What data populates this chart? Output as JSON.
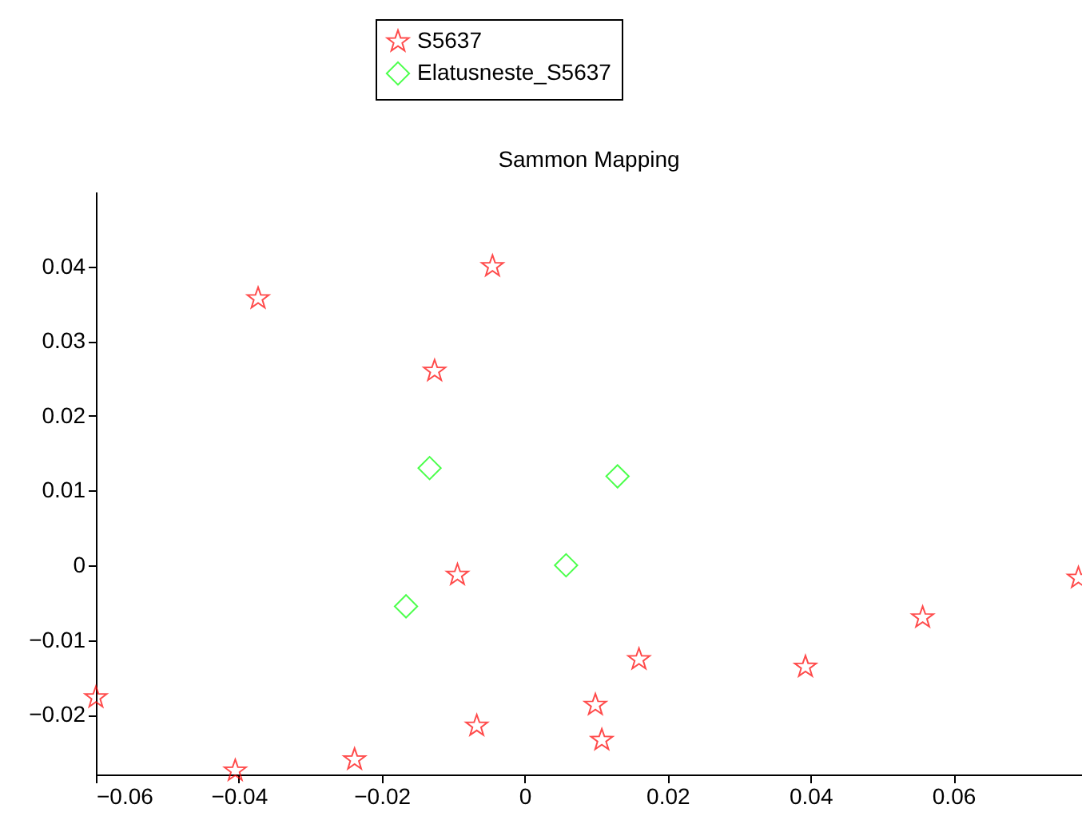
{
  "chart_data": {
    "type": "scatter",
    "title": "Sammon Mapping",
    "legend": "top",
    "grid": false,
    "xlim": [
      -0.06,
      0.078
    ],
    "xticks": [
      -0.06,
      -0.04,
      -0.02,
      0,
      0.02,
      0.04,
      0.06
    ],
    "ylim": [
      -0.028,
      0.05
    ],
    "yticks": [
      -0.02,
      -0.01,
      0,
      0.01,
      0.02,
      0.03,
      0.04
    ],
    "series": [
      {
        "name": "S5637",
        "color": "#ff0000",
        "marker": "star",
        "x": [
          -0.0045,
          -0.0373,
          -0.0126,
          -0.0094,
          -0.06,
          -0.0405,
          -0.0238,
          -0.0067,
          0.0099,
          0.0108,
          0.016,
          0.0393,
          0.0557,
          0.0775
        ],
        "values": [
          0.04,
          0.0357,
          0.026,
          -0.0013,
          -0.0177,
          -0.0275,
          -0.026,
          -0.0215,
          -0.0187,
          -0.0234,
          -0.0126,
          -0.0136,
          -0.007,
          -0.0017
        ]
      },
      {
        "name": "Elatusneste_S5637",
        "color": "#00ff00",
        "marker": "diamond",
        "x": [
          -0.0133,
          0.013,
          0.0058,
          -0.0166
        ],
        "values": [
          0.013,
          0.0119,
          0.0,
          -0.0055
        ]
      }
    ]
  }
}
